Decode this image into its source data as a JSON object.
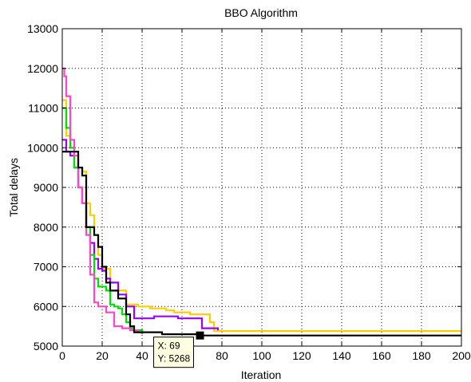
{
  "chart_data": {
    "type": "line",
    "title": "BBO Algorithm",
    "xlabel": "Iteration",
    "ylabel": "Total delays",
    "xlim": [
      0,
      200
    ],
    "ylim": [
      5000,
      13000
    ],
    "xticks": [
      0,
      20,
      40,
      60,
      80,
      100,
      120,
      140,
      160,
      180,
      200
    ],
    "yticks": [
      5000,
      6000,
      7000,
      8000,
      9000,
      10000,
      11000,
      12000,
      13000
    ],
    "grid": true,
    "series": [
      {
        "color": "#ffcc00",
        "x": [
          0,
          2,
          4,
          6,
          8,
          10,
          12,
          14,
          16,
          18,
          20,
          24,
          28,
          32,
          38,
          40,
          44,
          48,
          52,
          56,
          60,
          64,
          68,
          72,
          74,
          76,
          200
        ],
        "y": [
          11200,
          10300,
          10000,
          9900,
          9500,
          9400,
          8600,
          8300,
          7800,
          7300,
          6950,
          6600,
          6400,
          6050,
          6000,
          6000,
          5950,
          5950,
          5900,
          5850,
          5850,
          5800,
          5800,
          5800,
          5600,
          5380,
          5380
        ]
      },
      {
        "color": "#9900ff",
        "x": [
          0,
          2,
          4,
          6,
          8,
          10,
          12,
          14,
          16,
          18,
          20,
          22,
          24,
          28,
          32,
          36,
          40,
          46,
          52,
          58,
          62,
          66,
          70,
          72,
          76,
          78
        ],
        "y": [
          10200,
          9900,
          9800,
          9500,
          9000,
          8600,
          8000,
          7600,
          7200,
          6950,
          6900,
          6700,
          6600,
          6300,
          6000,
          5700,
          5700,
          5750,
          5750,
          5700,
          5700,
          5700,
          5450,
          5450,
          5450,
          5400
        ]
      },
      {
        "color": "#00e000",
        "x": [
          0,
          2,
          4,
          6,
          8,
          10,
          12,
          14,
          16,
          18,
          20,
          22,
          24,
          26,
          28,
          30,
          32,
          34,
          36,
          38,
          40
        ],
        "y": [
          11000,
          10500,
          10000,
          9500,
          9000,
          8600,
          8000,
          7300,
          6700,
          6500,
          6500,
          6400,
          6050,
          6000,
          5950,
          5800,
          5600,
          5450,
          5400,
          5400,
          5350
        ]
      },
      {
        "color": "#ff44cc",
        "x": [
          0,
          1,
          2,
          4,
          6,
          8,
          10,
          12,
          14,
          16,
          18,
          20,
          22,
          26,
          30,
          34,
          38,
          40
        ],
        "y": [
          12000,
          11800,
          11300,
          10200,
          9800,
          9000,
          8600,
          7800,
          6800,
          6100,
          6000,
          6000,
          5850,
          5500,
          5450,
          5400,
          5350,
          5300
        ]
      },
      {
        "color": "#000000",
        "x": [
          0,
          2,
          4,
          6,
          8,
          10,
          12,
          14,
          16,
          18,
          20,
          22,
          24,
          28,
          32,
          34,
          36,
          40,
          50,
          60,
          69,
          200
        ],
        "y": [
          9900,
          9900,
          9900,
          9900,
          9500,
          9300,
          8000,
          8000,
          7800,
          7500,
          7000,
          6600,
          6400,
          6200,
          5800,
          5500,
          5350,
          5350,
          5300,
          5300,
          5268,
          5268
        ]
      }
    ],
    "annotations": [
      {
        "x": 69,
        "y": 5268,
        "label_x": "X: 69",
        "label_y": "Y: 5268"
      }
    ]
  }
}
